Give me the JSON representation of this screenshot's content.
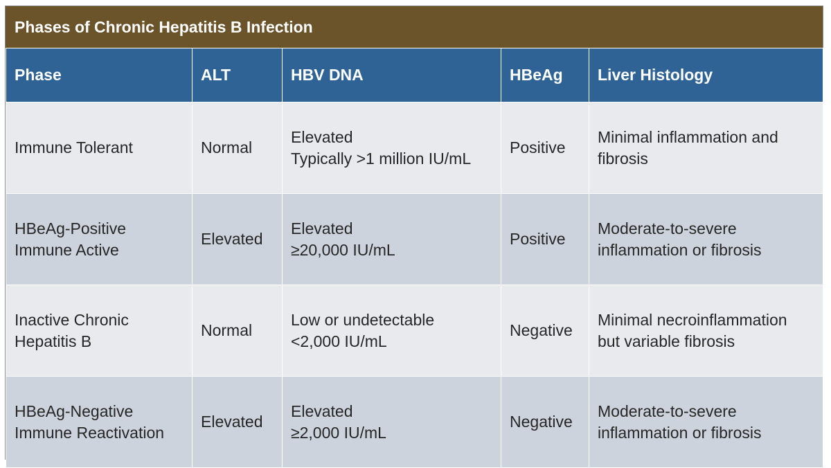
{
  "title": "Phases of Chronic Hepatitis B Infection",
  "columns": [
    "Phase",
    "ALT",
    "HBV DNA",
    "HBeAg",
    "Liver Histology"
  ],
  "rows": [
    {
      "phase": [
        "Immune Tolerant"
      ],
      "alt": "Normal",
      "hbv_dna": [
        "Elevated",
        "Typically >1 million IU/mL"
      ],
      "hbeag": "Positive",
      "histology": [
        "Minimal inflammation and",
        "fibrosis"
      ]
    },
    {
      "phase": [
        "HBeAg-Positive",
        "Immune Active"
      ],
      "alt": "Elevated",
      "hbv_dna": [
        "Elevated",
        " ≥20,000 IU/mL"
      ],
      "hbeag": "Positive",
      "histology": [
        "Moderate-to-severe",
        "inflammation or fibrosis"
      ]
    },
    {
      "phase": [
        "Inactive Chronic",
        "Hepatitis B"
      ],
      "alt": "Normal",
      "hbv_dna": [
        "Low or undetectable",
        "<2,000 IU/mL"
      ],
      "hbeag": "Negative",
      "histology": [
        "Minimal necroinflammation",
        "but variable fibrosis"
      ]
    },
    {
      "phase": [
        "HBeAg-Negative",
        "Immune Reactivation"
      ],
      "alt": "Elevated",
      "hbv_dna": [
        "Elevated",
        " ≥2,000 IU/mL"
      ],
      "hbeag": "Negative",
      "histology": [
        "Moderate-to-severe",
        "inflammation or fibrosis"
      ]
    }
  ],
  "colors": {
    "title_bg": "#6b532a",
    "header_bg": "#2f6295",
    "row_light": "#e8eaee",
    "row_dark": "#cdd3dc"
  }
}
